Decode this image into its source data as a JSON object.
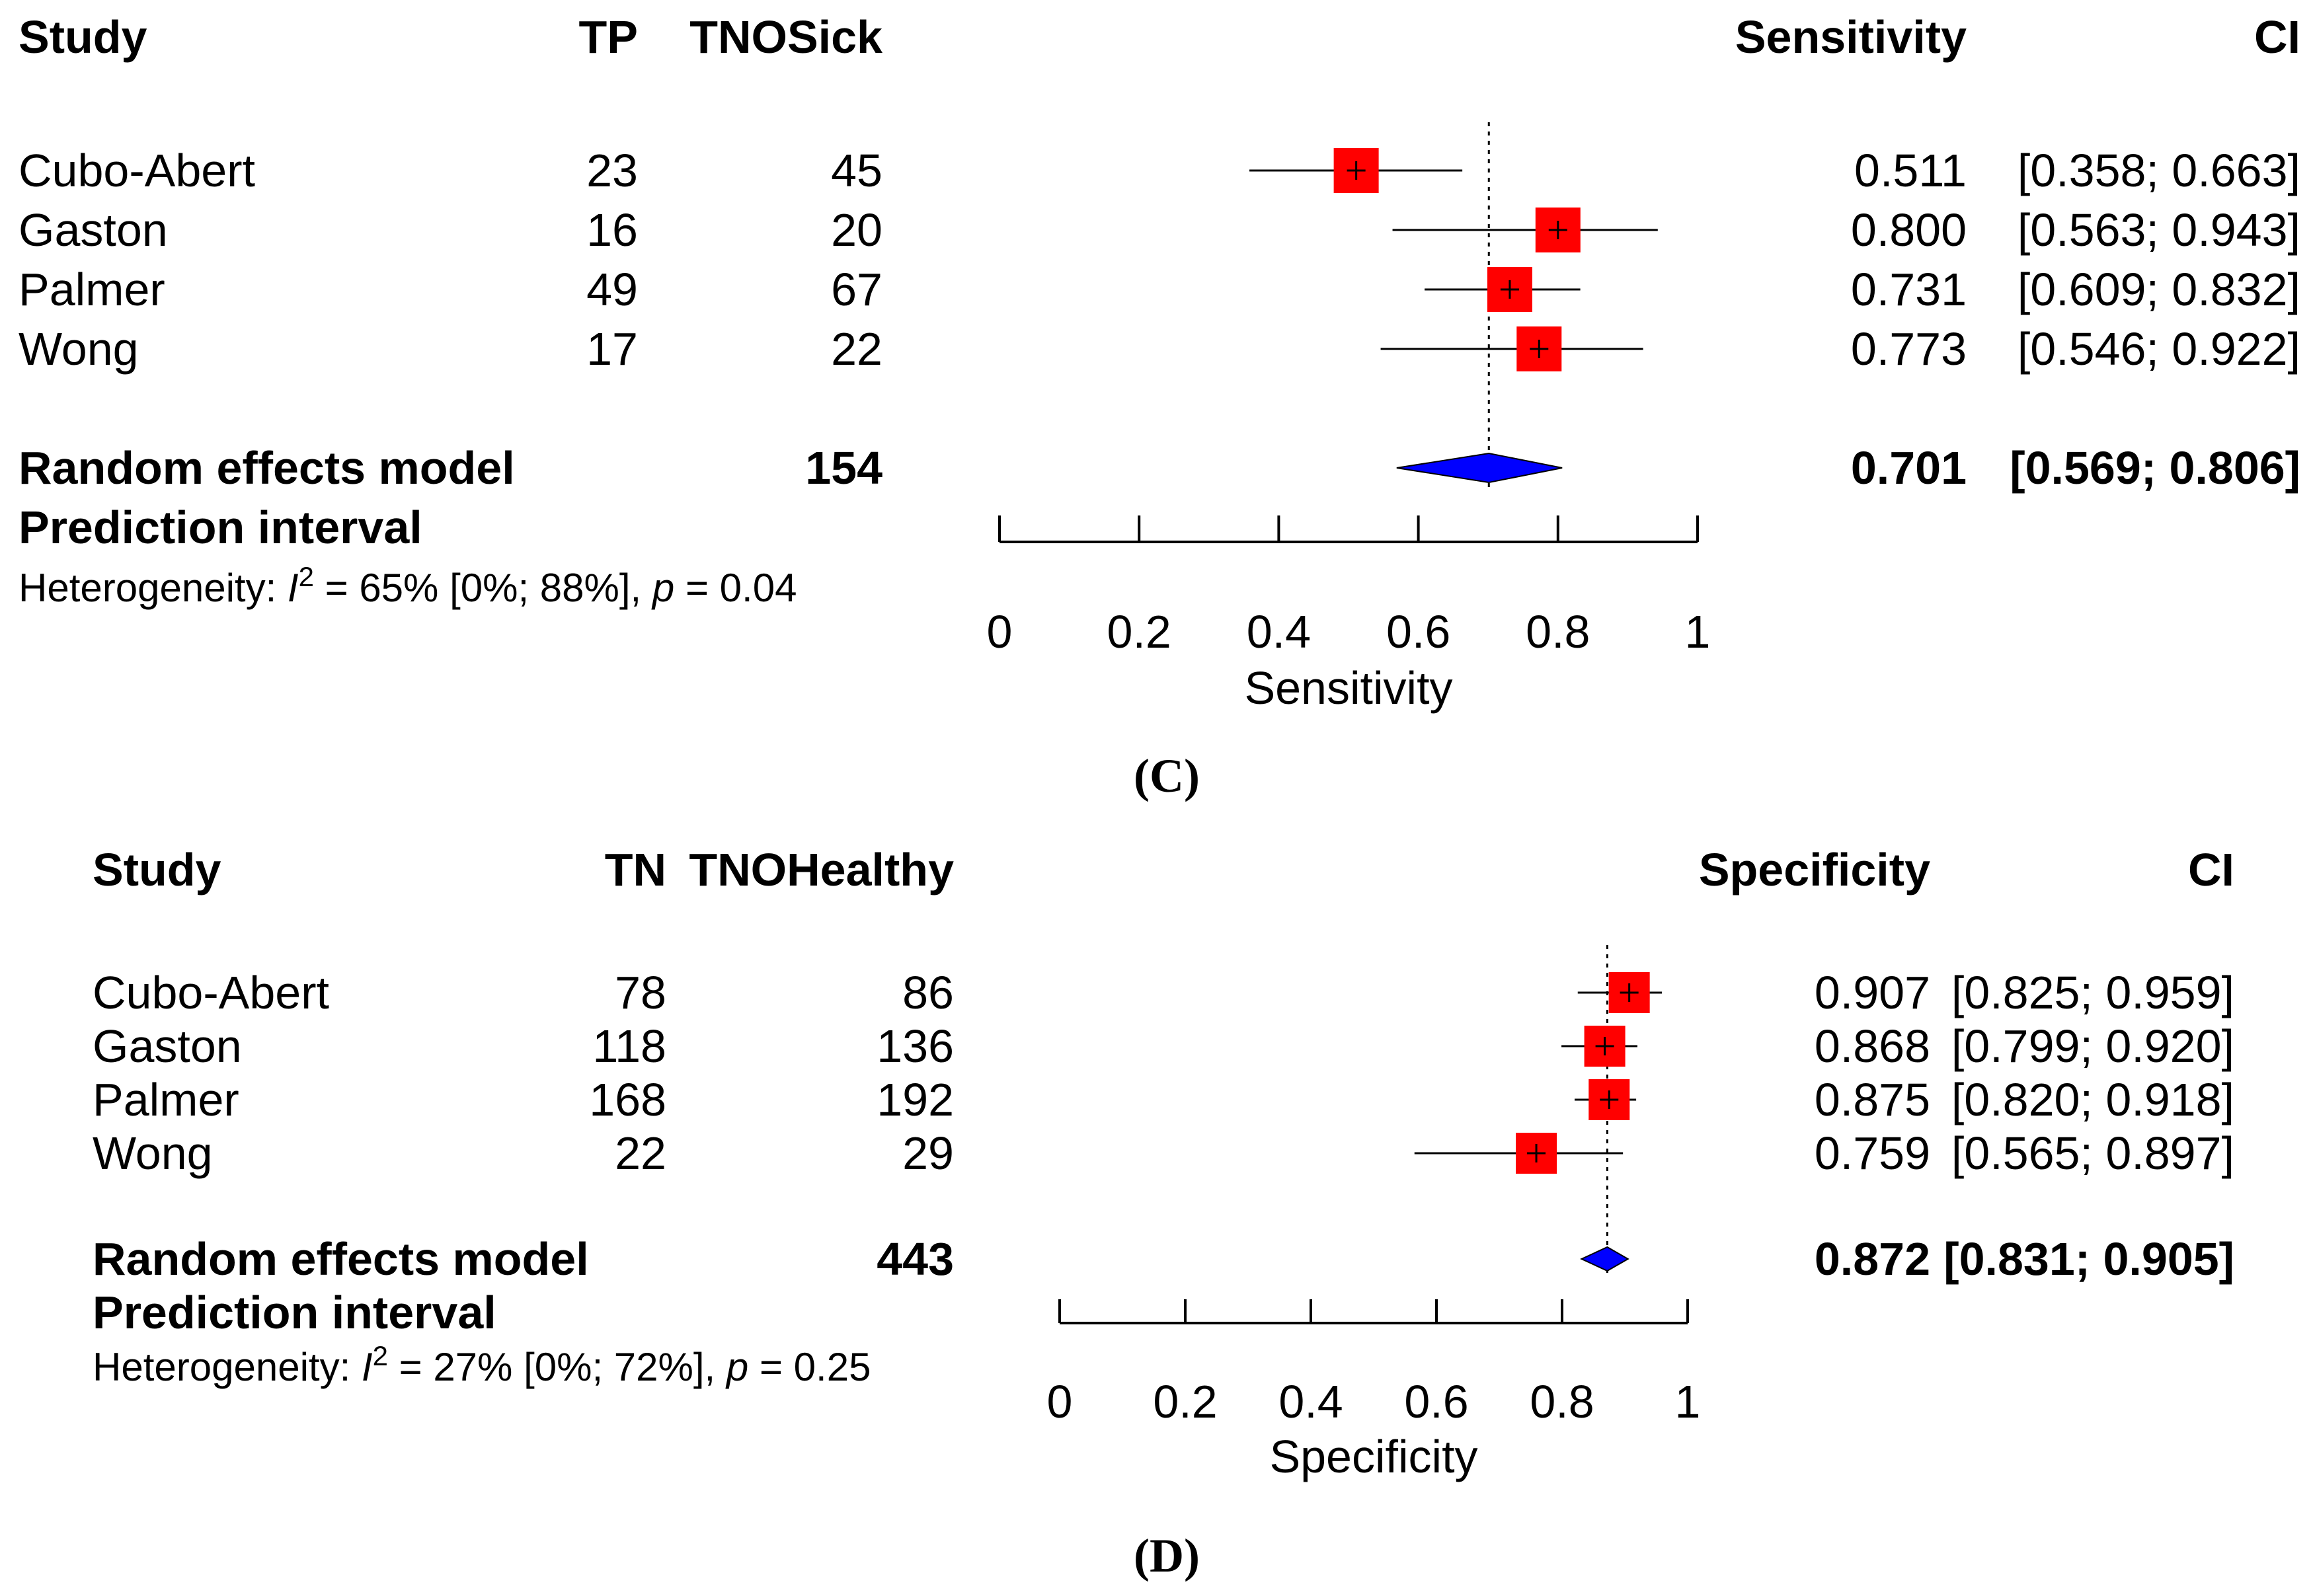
{
  "chart_data": [
    {
      "type": "forest",
      "panel_label": "(C)",
      "headers": {
        "study": "Study",
        "events": "TP",
        "total": "TNOSick",
        "estimate": "Sensitivity",
        "ci": "CI"
      },
      "studies": [
        {
          "name": "Cubo-Abert",
          "events": "23",
          "total": "45",
          "est": 0.511,
          "lower": 0.358,
          "upper": 0.663,
          "est_text": "0.511",
          "ci_text": "[0.358; 0.663]",
          "weight": 0.6
        },
        {
          "name": "Gaston",
          "events": "16",
          "total": "20",
          "est": 0.8,
          "lower": 0.563,
          "upper": 0.943,
          "est_text": "0.800",
          "ci_text": "[0.563; 0.943]",
          "weight": 0.6
        },
        {
          "name": "Palmer",
          "events": "49",
          "total": "67",
          "est": 0.731,
          "lower": 0.609,
          "upper": 0.832,
          "est_text": "0.731",
          "ci_text": "[0.609; 0.832]",
          "weight": 0.6
        },
        {
          "name": "Wong",
          "events": "17",
          "total": "22",
          "est": 0.773,
          "lower": 0.546,
          "upper": 0.922,
          "est_text": "0.773",
          "ci_text": "[0.546; 0.922]",
          "weight": 0.6
        }
      ],
      "pooled": {
        "label": "Random effects model",
        "total": "154",
        "est": 0.701,
        "lower": 0.569,
        "upper": 0.806,
        "est_text": "0.701",
        "ci_text": "[0.569; 0.806]"
      },
      "prediction_label": "Prediction interval",
      "heterogeneity": {
        "prefix": "Heterogeneity: ",
        "i2_symbol": "I",
        "i2_exp": "2",
        "i2_rest": " = 65% [0%; 88%], ",
        "p_symbol": "p",
        "p_rest": " = 0.04"
      },
      "xaxis": {
        "label": "Sensitivity",
        "ticks": [
          "0",
          "0.2",
          "0.4",
          "0.6",
          "0.8",
          "1"
        ],
        "range": [
          0,
          1
        ]
      },
      "reference_line": 0.701
    },
    {
      "type": "forest",
      "panel_label": "(D)",
      "headers": {
        "study": "Study",
        "events": "TN",
        "total": "TNOHealthy",
        "estimate": "Specificity",
        "ci": "CI"
      },
      "studies": [
        {
          "name": "Cubo-Abert",
          "events": "78",
          "total": "86",
          "est": 0.907,
          "lower": 0.825,
          "upper": 0.959,
          "est_text": "0.907",
          "ci_text": "[0.825; 0.959]",
          "weight": 0.6
        },
        {
          "name": "Gaston",
          "events": "118",
          "total": "136",
          "est": 0.868,
          "lower": 0.799,
          "upper": 0.92,
          "est_text": "0.868",
          "ci_text": "[0.799; 0.920]",
          "weight": 0.6
        },
        {
          "name": "Palmer",
          "events": "168",
          "total": "192",
          "est": 0.875,
          "lower": 0.82,
          "upper": 0.918,
          "est_text": "0.875",
          "ci_text": "[0.820; 0.918]",
          "weight": 0.6
        },
        {
          "name": "Wong",
          "events": "22",
          "total": "29",
          "est": 0.759,
          "lower": 0.565,
          "upper": 0.897,
          "est_text": "0.759",
          "ci_text": "[0.565; 0.897]",
          "weight": 0.6
        }
      ],
      "pooled": {
        "label": "Random effects model",
        "total": "443",
        "est": 0.872,
        "lower": 0.831,
        "upper": 0.905,
        "est_text": "0.872",
        "ci_text": "[0.831; 0.905]"
      },
      "prediction_label": "Prediction interval",
      "heterogeneity": {
        "prefix": "Heterogeneity: ",
        "i2_symbol": "I",
        "i2_exp": "2",
        "i2_rest": " = 27% [0%; 72%], ",
        "p_symbol": "p",
        "p_rest": " = 0.25"
      },
      "xaxis": {
        "label": "Specificity",
        "ticks": [
          "0",
          "0.2",
          "0.4",
          "0.6",
          "0.8",
          "1"
        ],
        "range": [
          0,
          1
        ]
      },
      "reference_line": 0.872
    }
  ],
  "colors": {
    "square": "#ff0000",
    "diamond": "#0000ff",
    "line": "#000000"
  }
}
